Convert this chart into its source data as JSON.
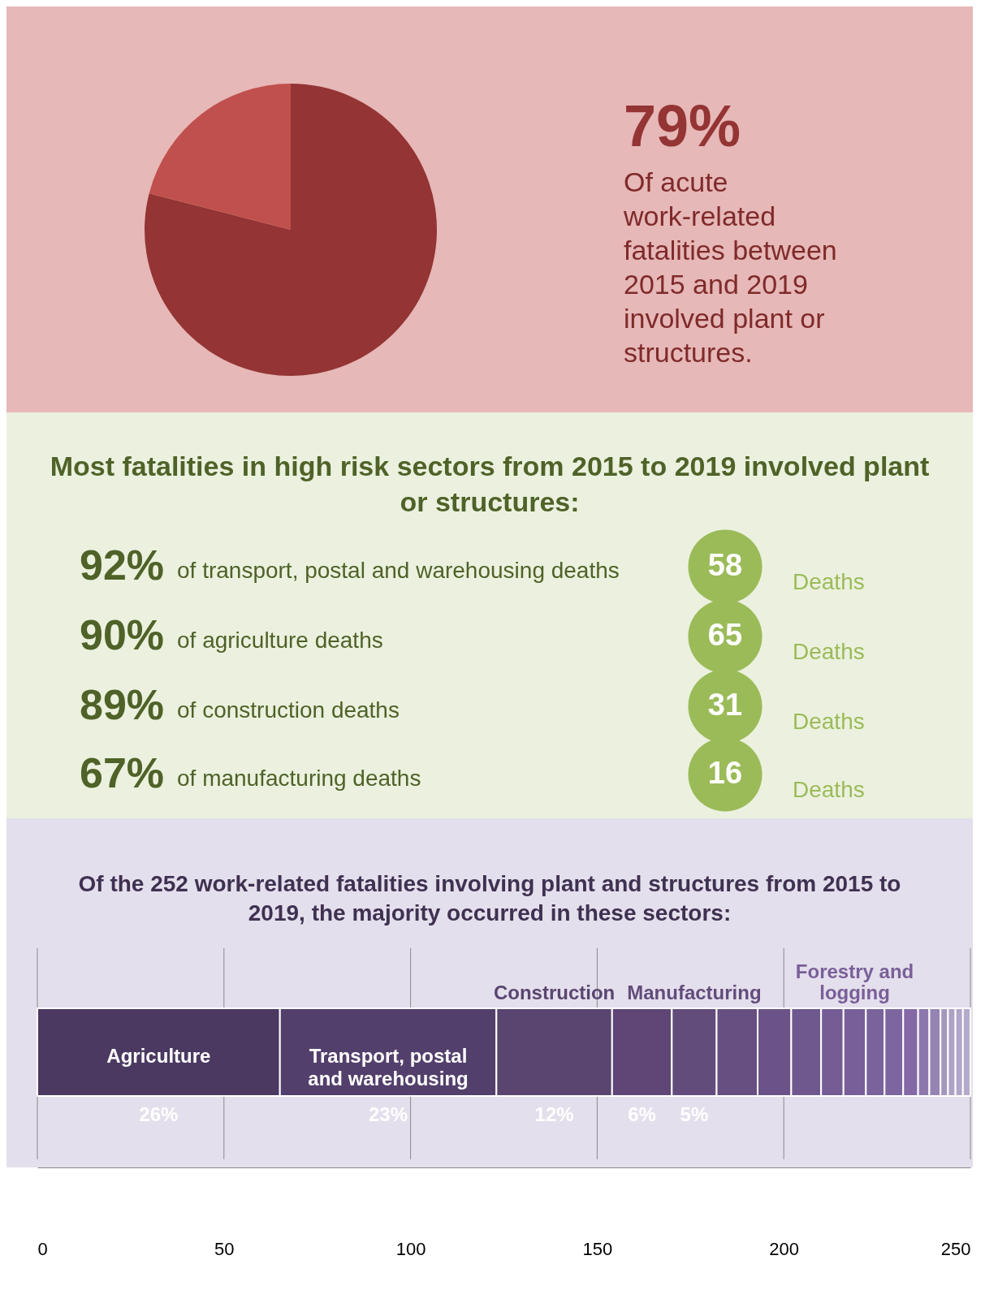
{
  "chart_data": [
    {
      "type": "pie",
      "categories": [
        null,
        null
      ],
      "values": [
        79,
        21
      ],
      "colors": [
        "#943434",
        "#c0504d"
      ],
      "annotations": [
        "79%",
        "Of acute work-related fatalities between 2015 and 2019 involved plant  or structures."
      ]
    },
    {
      "type": "other",
      "title": "Most fatalities in high risk sectors from 2015 to 2019 involved plant or structures:",
      "annotations": [
        "92%",
        "of transport, postal and warehousing deaths",
        "58",
        "Deaths",
        "90%",
        "of agriculture deaths",
        "65",
        "Deaths",
        "89%",
        "of construction deaths",
        "31",
        "Deaths",
        "67%",
        "of manufacturing deaths",
        "16",
        "Deaths"
      ]
    },
    {
      "type": "bar",
      "orientation": "horizontal",
      "stacked": true,
      "title": "Of the 252 work-related fatalities involving plant and structures from 2015 to 2019, the majority occurred in these sectors:",
      "categories": [
        null
      ],
      "xlim": [
        0,
        250
      ],
      "xticks": [
        0,
        50,
        100,
        150,
        200,
        250
      ],
      "grid": "x",
      "legend": false,
      "annotations": [
        "26%",
        "23%",
        "12%",
        "6%",
        "5%"
      ],
      "series": [
        {
          "name": "Agriculture",
          "color": "#4b3961",
          "values": [
            65
          ]
        },
        {
          "name": "Transport, postal and warehousing",
          "color": "#533f6b",
          "values": [
            58
          ]
        },
        {
          "name": "Construction",
          "color": "#5a4570",
          "values": [
            31
          ]
        },
        {
          "color": "#5f4677",
          "values": [
            16
          ]
        },
        {
          "name": "Manufacturing",
          "color": "#624c7c",
          "values": [
            12
          ]
        },
        {
          "color": "#674f82",
          "values": [
            11
          ]
        },
        {
          "color": "#6b5287",
          "values": [
            9
          ]
        },
        {
          "color": "#6f588e",
          "values": [
            8
          ]
        },
        {
          "color": "#755c95",
          "values": [
            6
          ]
        },
        {
          "name": "Forestry and logging",
          "color": "#795f99",
          "values": [
            6
          ]
        },
        {
          "color": "#7a639b",
          "values": [
            5
          ]
        },
        {
          "color": "#7d66a0",
          "values": [
            5
          ]
        },
        {
          "color": "#8469a6",
          "values": [
            4
          ]
        },
        {
          "color": "#8d78ad",
          "values": [
            3
          ]
        },
        {
          "color": "#9584b3",
          "values": [
            3
          ]
        },
        {
          "color": "#a496bd",
          "values": [
            2
          ]
        },
        {
          "color": "#ada1c5",
          "values": [
            2
          ]
        },
        {
          "color": "#b1a6c8",
          "values": [
            2
          ]
        },
        {
          "color": "#b5aacb",
          "values": [
            2
          ]
        }
      ]
    }
  ]
}
